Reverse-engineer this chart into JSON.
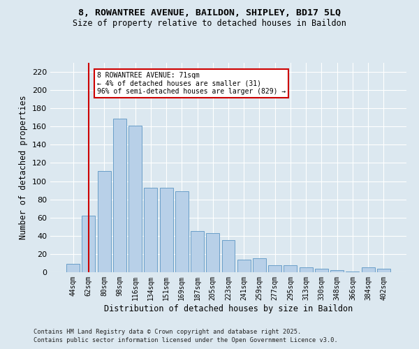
{
  "title1": "8, ROWANTREE AVENUE, BAILDON, SHIPLEY, BD17 5LQ",
  "title2": "Size of property relative to detached houses in Baildon",
  "xlabel": "Distribution of detached houses by size in Baildon",
  "ylabel": "Number of detached properties",
  "categories": [
    "44sqm",
    "62sqm",
    "80sqm",
    "98sqm",
    "116sqm",
    "134sqm",
    "151sqm",
    "169sqm",
    "187sqm",
    "205sqm",
    "223sqm",
    "241sqm",
    "259sqm",
    "277sqm",
    "295sqm",
    "313sqm",
    "330sqm",
    "348sqm",
    "366sqm",
    "384sqm",
    "402sqm"
  ],
  "values": [
    9,
    62,
    111,
    169,
    161,
    93,
    93,
    89,
    45,
    43,
    35,
    14,
    15,
    8,
    8,
    5,
    4,
    2,
    1,
    5,
    4
  ],
  "bar_color": "#b8d0e8",
  "bar_edge_color": "#6a9fc8",
  "background_color": "#dce8f0",
  "grid_color": "#ffffff",
  "annotation_line1": "8 ROWANTREE AVENUE: 71sqm",
  "annotation_line2": "← 4% of detached houses are smaller (31)",
  "annotation_line3": "96% of semi-detached houses are larger (829) →",
  "annotation_box_color": "#cc0000",
  "redline_x": 1,
  "ylim": [
    0,
    230
  ],
  "yticks": [
    0,
    20,
    40,
    60,
    80,
    100,
    120,
    140,
    160,
    180,
    200,
    220
  ],
  "footer1": "Contains HM Land Registry data © Crown copyright and database right 2025.",
  "footer2": "Contains public sector information licensed under the Open Government Licence v3.0."
}
